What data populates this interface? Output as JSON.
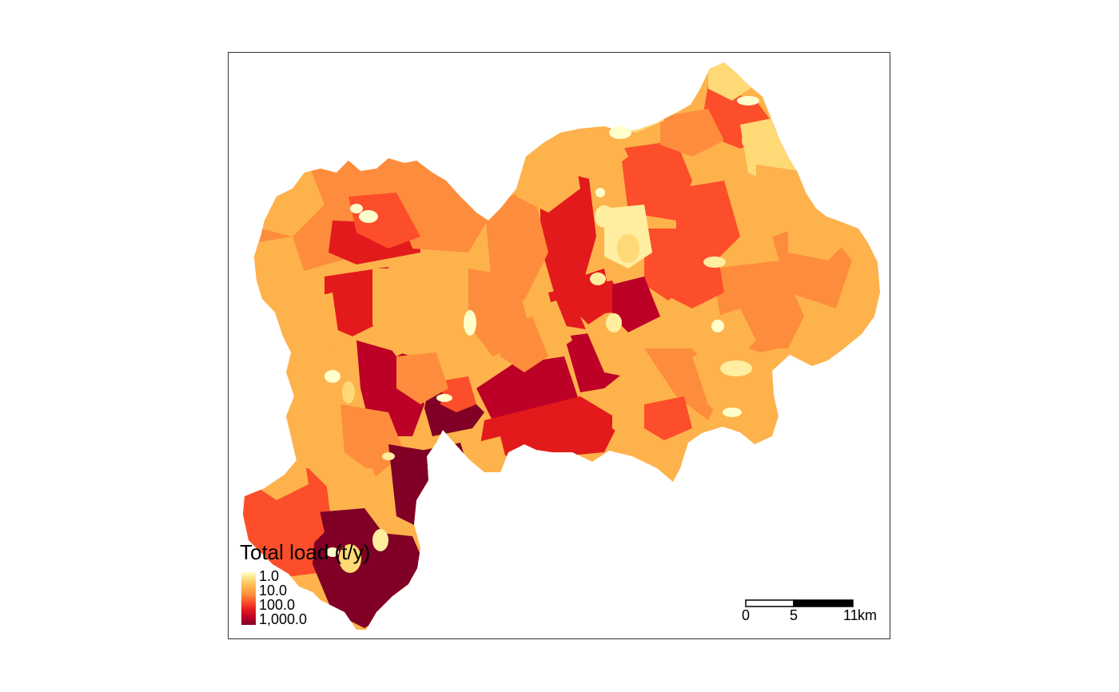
{
  "legend": {
    "title": "Total load (t/y)",
    "labels": [
      "1.0",
      "10.0",
      "100.0",
      "1,000.0"
    ],
    "ramp": [
      "#FFFFCC",
      "#FED976",
      "#FEB24C",
      "#FD8D3C",
      "#FC4E2A",
      "#E31A1C",
      "#BD0026",
      "#800026"
    ]
  },
  "scale_bar": {
    "labels": [
      "0",
      "5",
      "11"
    ],
    "unit": "km"
  },
  "colors": {
    "frame": "#333333",
    "background": "#ffffff"
  }
}
